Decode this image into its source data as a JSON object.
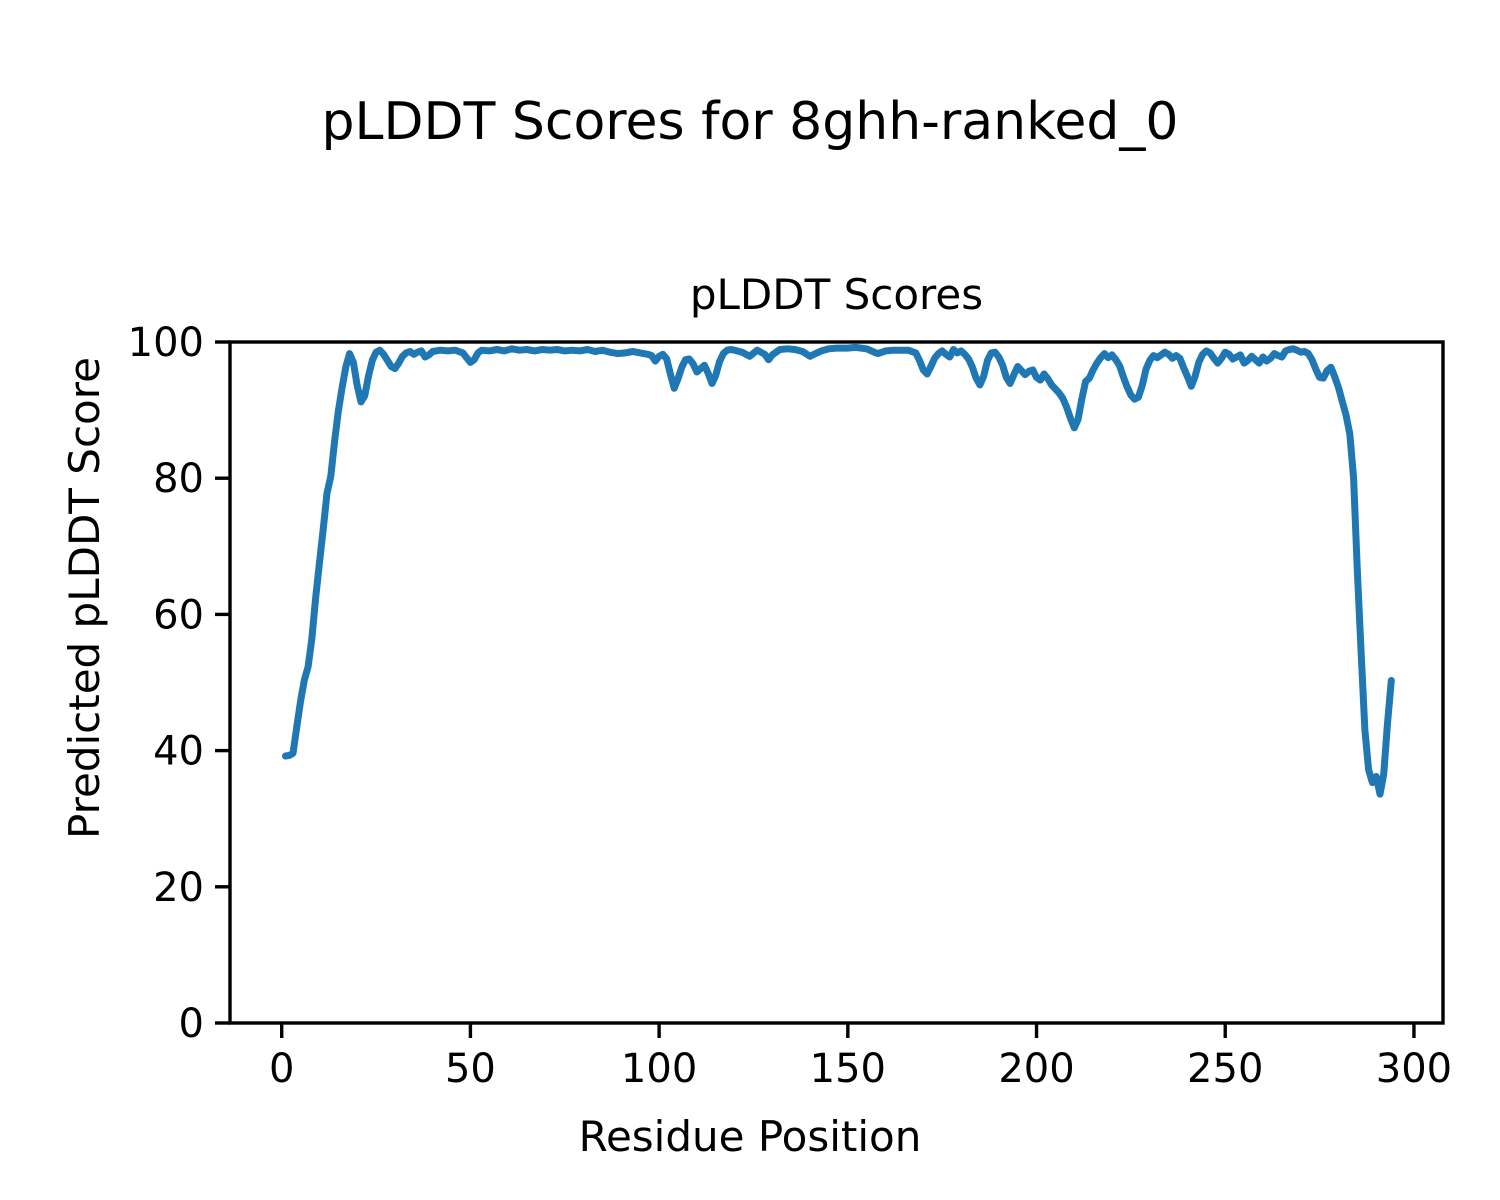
{
  "chart_data": {
    "type": "line",
    "suptitle": "pLDDT Scores for 8ghh-ranked_0",
    "title": "pLDDT Scores",
    "xlabel": "Residue Position",
    "ylabel": "Predicted pLDDT Score",
    "xlim": [
      -13.7,
      307.7
    ],
    "ylim": [
      0,
      100
    ],
    "x_ticks": [
      0,
      50,
      100,
      150,
      200,
      250,
      300
    ],
    "y_ticks": [
      0,
      20,
      40,
      60,
      80,
      100
    ],
    "grid": false,
    "legend": false,
    "line_color": "#1f77b4",
    "axis_color": "#000000",
    "background": "#ffffff",
    "series": [
      {
        "name": "pLDDT",
        "points": [
          [
            1,
            39.2
          ],
          [
            2,
            39.3
          ],
          [
            3,
            39.6
          ],
          [
            4,
            43.5
          ],
          [
            5,
            47.3
          ],
          [
            6,
            50.4
          ],
          [
            7,
            52.3
          ],
          [
            8,
            56.5
          ],
          [
            9,
            62.5
          ],
          [
            10,
            67.5
          ],
          [
            11,
            72.5
          ],
          [
            12,
            77.8
          ],
          [
            13,
            80.3
          ],
          [
            14,
            85.3
          ],
          [
            15,
            89.8
          ],
          [
            16,
            93.3
          ],
          [
            17,
            96.4
          ],
          [
            18,
            98.3
          ],
          [
            19,
            97.0
          ],
          [
            20,
            93.6
          ],
          [
            21,
            91.2
          ],
          [
            22,
            92.1
          ],
          [
            23,
            95.0
          ],
          [
            24,
            97.3
          ],
          [
            25,
            98.5
          ],
          [
            26,
            98.8
          ],
          [
            27,
            98.2
          ],
          [
            28,
            97.3
          ],
          [
            29,
            96.4
          ],
          [
            30,
            96.1
          ],
          [
            31,
            96.9
          ],
          [
            32,
            97.9
          ],
          [
            33,
            98.4
          ],
          [
            34,
            98.6
          ],
          [
            35,
            98.2
          ],
          [
            36,
            98.5
          ],
          [
            37,
            98.7
          ],
          [
            38,
            97.8
          ],
          [
            39,
            98.1
          ],
          [
            40,
            98.6
          ],
          [
            42,
            98.8
          ],
          [
            44,
            98.7
          ],
          [
            46,
            98.8
          ],
          [
            48,
            98.4
          ],
          [
            49,
            97.7
          ],
          [
            50,
            97.0
          ],
          [
            51,
            97.4
          ],
          [
            52,
            98.4
          ],
          [
            53,
            98.8
          ],
          [
            55,
            98.7
          ],
          [
            57,
            98.9
          ],
          [
            59,
            98.7
          ],
          [
            61,
            99.0
          ],
          [
            63,
            98.8
          ],
          [
            65,
            98.9
          ],
          [
            67,
            98.7
          ],
          [
            69,
            98.9
          ],
          [
            71,
            98.8
          ],
          [
            73,
            98.9
          ],
          [
            75,
            98.7
          ],
          [
            77,
            98.8
          ],
          [
            79,
            98.7
          ],
          [
            81,
            98.9
          ],
          [
            83,
            98.6
          ],
          [
            85,
            98.8
          ],
          [
            87,
            98.5
          ],
          [
            89,
            98.3
          ],
          [
            91,
            98.4
          ],
          [
            93,
            98.6
          ],
          [
            95,
            98.4
          ],
          [
            97,
            98.2
          ],
          [
            98,
            98.0
          ],
          [
            99,
            97.2
          ],
          [
            100,
            97.9
          ],
          [
            101,
            98.2
          ],
          [
            102,
            97.5
          ],
          [
            103,
            95.3
          ],
          [
            104,
            93.2
          ],
          [
            105,
            94.6
          ],
          [
            106,
            96.3
          ],
          [
            107,
            97.4
          ],
          [
            108,
            97.5
          ],
          [
            109,
            96.8
          ],
          [
            110,
            95.6
          ],
          [
            111,
            96.1
          ],
          [
            112,
            96.6
          ],
          [
            113,
            95.4
          ],
          [
            114,
            93.9
          ],
          [
            115,
            95.1
          ],
          [
            116,
            97.1
          ],
          [
            117,
            98.3
          ],
          [
            118,
            98.8
          ],
          [
            119,
            98.9
          ],
          [
            120,
            98.8
          ],
          [
            122,
            98.5
          ],
          [
            124,
            97.9
          ],
          [
            126,
            98.8
          ],
          [
            128,
            98.2
          ],
          [
            129,
            97.4
          ],
          [
            130,
            98.1
          ],
          [
            132,
            98.9
          ],
          [
            134,
            99.0
          ],
          [
            136,
            98.9
          ],
          [
            138,
            98.6
          ],
          [
            140,
            97.9
          ],
          [
            141,
            98.2
          ],
          [
            143,
            98.7
          ],
          [
            145,
            99.0
          ],
          [
            147,
            99.1
          ],
          [
            150,
            99.1
          ],
          [
            152,
            99.2
          ],
          [
            155,
            99.0
          ],
          [
            157,
            98.5
          ],
          [
            158,
            98.3
          ],
          [
            160,
            98.7
          ],
          [
            162,
            98.8
          ],
          [
            164,
            98.8
          ],
          [
            166,
            98.8
          ],
          [
            168,
            98.4
          ],
          [
            169,
            97.3
          ],
          [
            170,
            95.9
          ],
          [
            171,
            95.3
          ],
          [
            172,
            96.4
          ],
          [
            173,
            97.6
          ],
          [
            174,
            98.3
          ],
          [
            175,
            98.7
          ],
          [
            176,
            98.2
          ],
          [
            177,
            97.8
          ],
          [
            178,
            98.9
          ],
          [
            179,
            98.4
          ],
          [
            180,
            98.7
          ],
          [
            181,
            98.2
          ],
          [
            182,
            97.5
          ],
          [
            183,
            96.3
          ],
          [
            184,
            94.7
          ],
          [
            185,
            93.7
          ],
          [
            186,
            95.0
          ],
          [
            187,
            97.3
          ],
          [
            188,
            98.4
          ],
          [
            189,
            98.5
          ],
          [
            190,
            97.8
          ],
          [
            191,
            96.6
          ],
          [
            192,
            94.8
          ],
          [
            193,
            93.9
          ],
          [
            194,
            95.2
          ],
          [
            195,
            96.4
          ],
          [
            196,
            95.8
          ],
          [
            197,
            95.2
          ],
          [
            198,
            95.7
          ],
          [
            199,
            95.9
          ],
          [
            200,
            94.8
          ],
          [
            201,
            94.4
          ],
          [
            202,
            95.3
          ],
          [
            203,
            94.6
          ],
          [
            204,
            93.7
          ],
          [
            205,
            93.1
          ],
          [
            206,
            92.5
          ],
          [
            207,
            91.7
          ],
          [
            208,
            90.4
          ],
          [
            209,
            88.8
          ],
          [
            210,
            87.4
          ],
          [
            211,
            88.6
          ],
          [
            212,
            91.6
          ],
          [
            213,
            94.2
          ],
          [
            214,
            94.7
          ],
          [
            215,
            95.9
          ],
          [
            216,
            96.9
          ],
          [
            217,
            97.7
          ],
          [
            218,
            98.3
          ],
          [
            219,
            97.7
          ],
          [
            220,
            98.1
          ],
          [
            221,
            97.4
          ],
          [
            222,
            96.5
          ],
          [
            223,
            94.9
          ],
          [
            224,
            93.4
          ],
          [
            225,
            92.2
          ],
          [
            226,
            91.6
          ],
          [
            227,
            91.9
          ],
          [
            228,
            93.6
          ],
          [
            229,
            96.0
          ],
          [
            230,
            97.3
          ],
          [
            231,
            98.0
          ],
          [
            232,
            97.7
          ],
          [
            233,
            98.1
          ],
          [
            234,
            98.5
          ],
          [
            235,
            98.2
          ],
          [
            236,
            97.6
          ],
          [
            237,
            98.0
          ],
          [
            238,
            97.6
          ],
          [
            239,
            96.2
          ],
          [
            240,
            94.9
          ],
          [
            241,
            93.5
          ],
          [
            242,
            94.9
          ],
          [
            243,
            97.0
          ],
          [
            244,
            98.2
          ],
          [
            245,
            98.7
          ],
          [
            246,
            98.4
          ],
          [
            247,
            97.6
          ],
          [
            248,
            96.9
          ],
          [
            249,
            97.6
          ],
          [
            250,
            98.5
          ],
          [
            251,
            98.2
          ],
          [
            252,
            97.5
          ],
          [
            253,
            97.8
          ],
          [
            254,
            98.1
          ],
          [
            255,
            96.9
          ],
          [
            256,
            97.3
          ],
          [
            257,
            97.9
          ],
          [
            258,
            97.4
          ],
          [
            259,
            96.9
          ],
          [
            260,
            97.8
          ],
          [
            261,
            97.2
          ],
          [
            262,
            97.6
          ],
          [
            263,
            98.3
          ],
          [
            264,
            98.0
          ],
          [
            265,
            97.8
          ],
          [
            266,
            98.7
          ],
          [
            267,
            98.9
          ],
          [
            268,
            99.0
          ],
          [
            269,
            98.8
          ],
          [
            270,
            98.5
          ],
          [
            271,
            98.6
          ],
          [
            272,
            98.3
          ],
          [
            273,
            97.4
          ],
          [
            274,
            96.0
          ],
          [
            275,
            94.8
          ],
          [
            276,
            94.7
          ],
          [
            277,
            95.8
          ],
          [
            278,
            96.3
          ],
          [
            279,
            94.9
          ],
          [
            280,
            93.3
          ],
          [
            281,
            91.3
          ],
          [
            282,
            89.3
          ],
          [
            283,
            86.5
          ],
          [
            284,
            80.0
          ],
          [
            285,
            66.5
          ],
          [
            286,
            54.5
          ],
          [
            287,
            43.0
          ],
          [
            288,
            37.2
          ],
          [
            289,
            35.3
          ],
          [
            290,
            36.2
          ],
          [
            291,
            33.6
          ],
          [
            292,
            36.5
          ],
          [
            293,
            44.0
          ],
          [
            294,
            50.3
          ]
        ]
      }
    ]
  }
}
